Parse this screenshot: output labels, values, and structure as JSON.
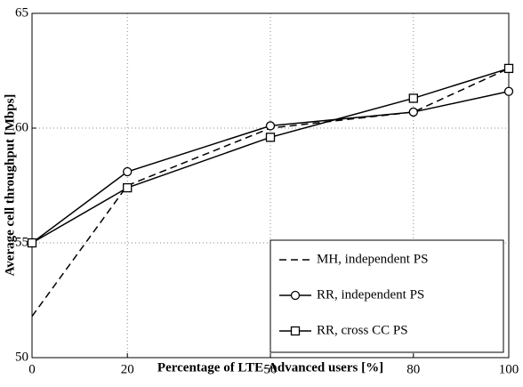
{
  "chart_data": {
    "type": "line",
    "x_label": "Percentage of LTE-Advanced users [%]",
    "y_label": "Average cell throughput [Mbps]",
    "x": [
      0,
      20,
      50,
      80,
      100
    ],
    "series": [
      {
        "name": "MH, independent PS",
        "color": "#000000",
        "dash": "dashed",
        "marker": "none",
        "values": [
          51.8,
          57.5,
          60.0,
          60.7,
          62.6
        ]
      },
      {
        "name": "RR, independent PS",
        "color": "#000000",
        "dash": "solid",
        "marker": "circle",
        "values": [
          55.0,
          58.1,
          60.1,
          60.7,
          61.6
        ]
      },
      {
        "name": "RR, cross CC PS",
        "color": "#000000",
        "dash": "solid",
        "marker": "square",
        "values": [
          55.0,
          57.4,
          59.6,
          61.3,
          62.6
        ]
      }
    ],
    "xlim": [
      0,
      100
    ],
    "xticks": [
      0,
      20,
      50,
      80,
      100
    ],
    "ylim": [
      50,
      65
    ],
    "yticks": [
      50,
      55,
      60,
      65
    ],
    "grid": true,
    "legend": "lower right"
  }
}
